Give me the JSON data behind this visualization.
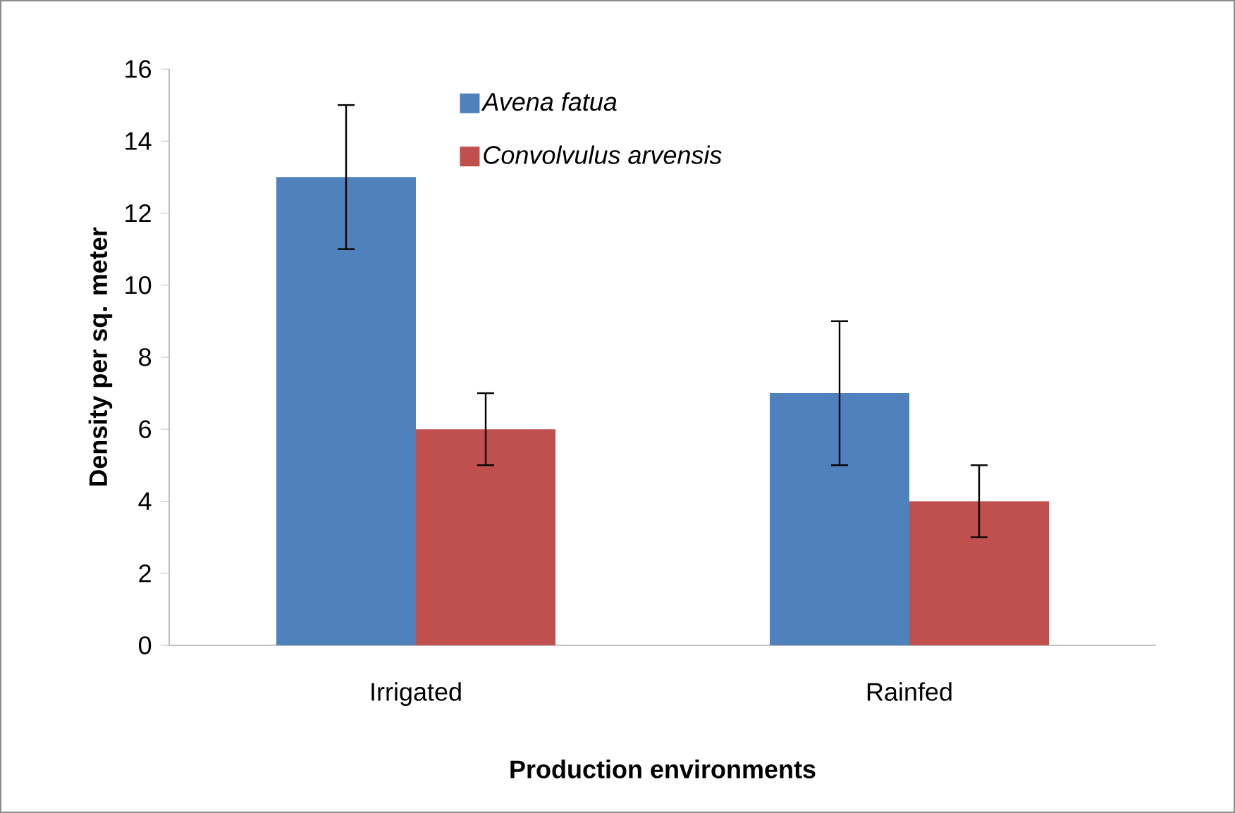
{
  "chart_data": {
    "type": "bar",
    "xlabel": "Production environments",
    "ylabel": "Density per  sq. meter",
    "categories": [
      "Irrigated",
      "Rainfed"
    ],
    "series": [
      {
        "name": "Avena fatua",
        "color": "#4f81bd",
        "values": [
          13,
          7
        ],
        "errors": [
          2,
          2
        ]
      },
      {
        "name": "Convolvulus arvensis",
        "color": "#c0504d",
        "values": [
          6,
          4
        ],
        "errors": [
          1,
          1
        ]
      }
    ],
    "ylim": [
      0,
      16
    ],
    "yticks": [
      0,
      2,
      4,
      6,
      8,
      10,
      12,
      14,
      16
    ],
    "grid": false,
    "legend": "top"
  }
}
